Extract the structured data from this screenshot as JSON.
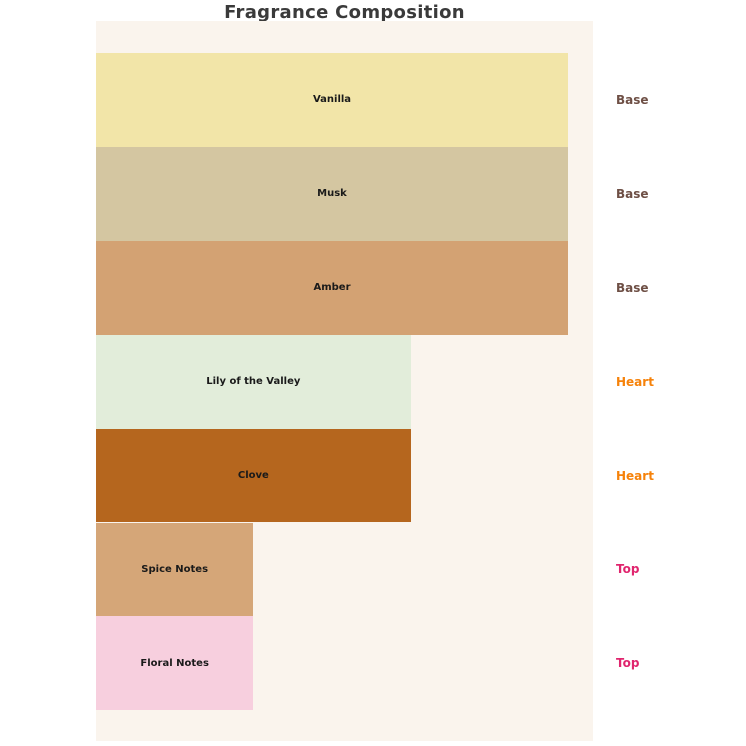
{
  "chart_data": {
    "type": "bar",
    "orientation": "horizontal",
    "title": "Fragrance Composition",
    "categories": [
      "Vanilla",
      "Musk",
      "Amber",
      "Lily of the Valley",
      "Clove",
      "Spice Notes",
      "Floral Notes"
    ],
    "values": [
      3,
      3,
      3,
      2,
      2,
      1,
      1
    ],
    "xlim": [
      0,
      3.16
    ],
    "group_labels": [
      "Base",
      "Base",
      "Base",
      "Heart",
      "Heart",
      "Top",
      "Top"
    ],
    "bar_colors": [
      "#F2E5A8",
      "#D4C6A1",
      "#D3A273",
      "#E2EDDA",
      "#B5661E",
      "#D5A678",
      "#F7CFDE"
    ],
    "group_label_colors": {
      "Base": "#6E4F45",
      "Heart": "#F6820A",
      "Top": "#E0256E"
    },
    "colors": {
      "plot_background": "#FAF4ED",
      "title_text": "#3A3A3A",
      "bar_label_text": "#1A1A1A"
    },
    "legend": "none",
    "grid": "off",
    "axis_ticks": "none"
  }
}
